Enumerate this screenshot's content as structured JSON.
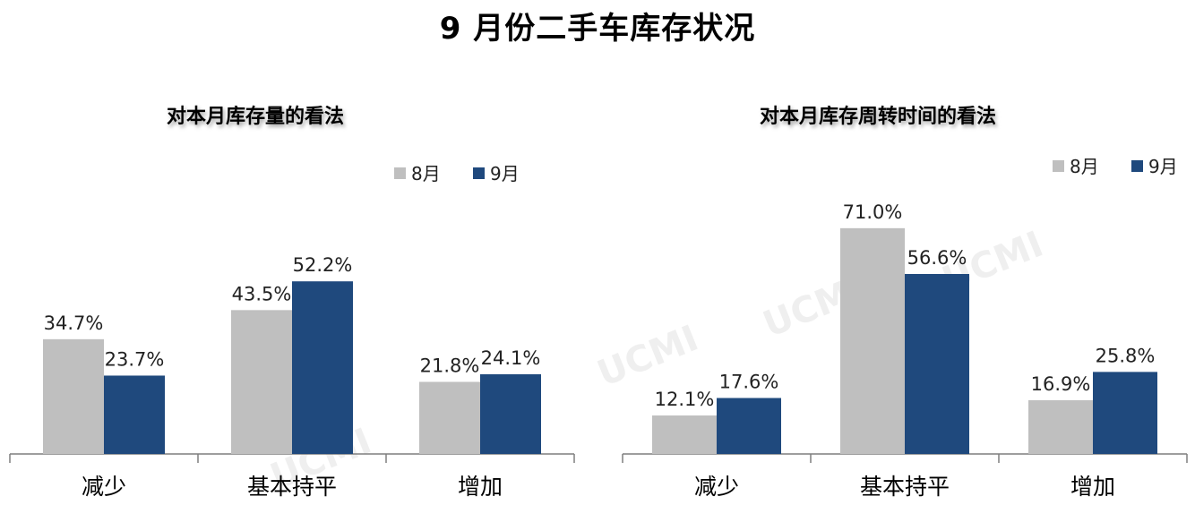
{
  "page_title": "9 月份二手车库存状况",
  "watermark": "UCMI",
  "colors": {
    "aug": "#bfbfbf",
    "sep": "#1f497d",
    "axis": "#7f7f7f"
  },
  "chart_data": [
    {
      "type": "bar",
      "title": "对本月库存量的看法",
      "categories": [
        "减少",
        "基本持平",
        "增加"
      ],
      "series": [
        {
          "name": "8月",
          "values": [
            34.7,
            43.5,
            21.8
          ],
          "labels": [
            "34.7%",
            "43.5%",
            "21.8%"
          ]
        },
        {
          "name": "9月",
          "values": [
            23.7,
            52.2,
            24.1
          ],
          "labels": [
            "23.7%",
            "52.2%",
            "24.1%"
          ]
        }
      ],
      "ylim": [
        0,
        75
      ],
      "legend": "top-right",
      "grid": false
    },
    {
      "type": "bar",
      "title": "对本月库存周转时间的看法",
      "categories": [
        "减少",
        "基本持平",
        "增加"
      ],
      "series": [
        {
          "name": "8月",
          "values": [
            12.1,
            71.0,
            16.9
          ],
          "labels": [
            "12.1%",
            "71.0%",
            "16.9%"
          ]
        },
        {
          "name": "9月",
          "values": [
            17.6,
            56.6,
            25.8
          ],
          "labels": [
            "17.6%",
            "56.6%",
            "25.8%"
          ]
        }
      ],
      "ylim": [
        0,
        78
      ],
      "legend": "top-right",
      "grid": false
    }
  ]
}
